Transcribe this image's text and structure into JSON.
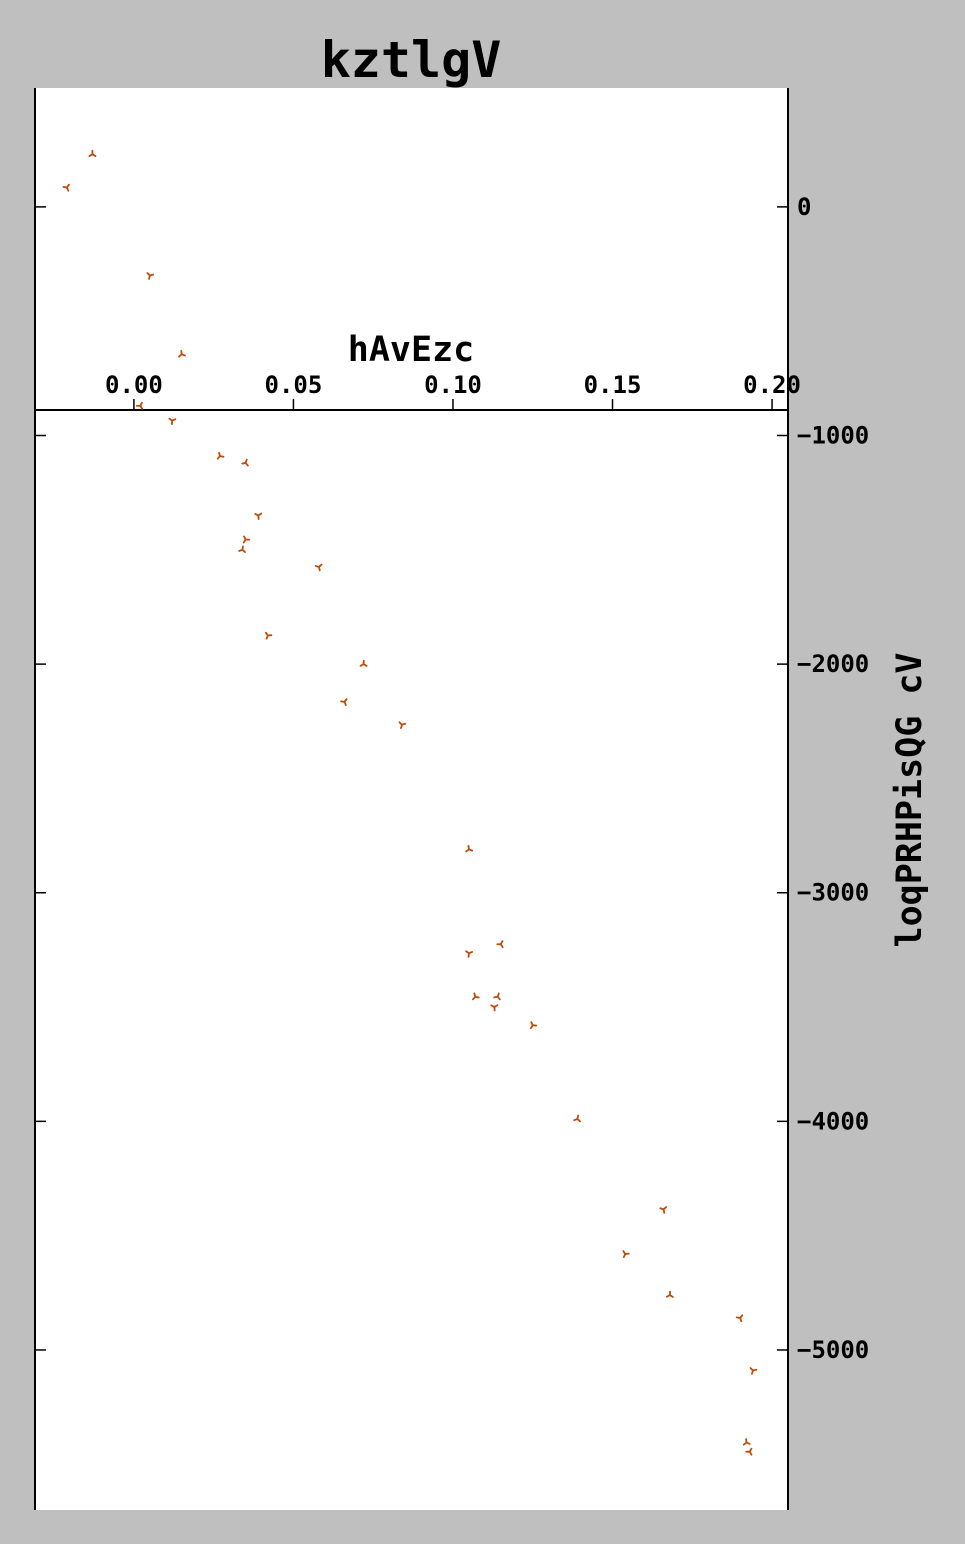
{
  "chart_data": {
    "type": "scatter",
    "title": "kztlgV",
    "xlabel": "hAvEzc",
    "ylabel": "loqPRHPisQG cV",
    "xlim": [
      -0.031,
      0.205
    ],
    "ylim": [
      -5700,
      520
    ],
    "x_ticks": [
      0.0,
      0.05,
      0.1,
      0.15,
      0.2
    ],
    "x_tick_labels": [
      "0.00",
      "0.05",
      "0.10",
      "0.15",
      "0.20"
    ],
    "y_ticks": [
      0,
      -1000,
      -2000,
      -3000,
      -4000,
      -5000
    ],
    "y_tick_labels": [
      "0",
      "−1000",
      "−2000",
      "−3000",
      "−4000",
      "−5000"
    ],
    "x_axis_position": "inside-top",
    "y_axis_position": "right",
    "grid": false,
    "marker": "tri",
    "marker_color": "#c04a08",
    "points": [
      {
        "x": -0.013,
        "y": 230
      },
      {
        "x": -0.021,
        "y": 85
      },
      {
        "x": 0.005,
        "y": -300
      },
      {
        "x": 0.015,
        "y": -645
      },
      {
        "x": 0.002,
        "y": -870
      },
      {
        "x": 0.012,
        "y": -935
      },
      {
        "x": 0.027,
        "y": -1090
      },
      {
        "x": 0.035,
        "y": -1120
      },
      {
        "x": 0.039,
        "y": -1350
      },
      {
        "x": 0.035,
        "y": -1455
      },
      {
        "x": 0.034,
        "y": -1500
      },
      {
        "x": 0.058,
        "y": -1575
      },
      {
        "x": 0.042,
        "y": -1875
      },
      {
        "x": 0.072,
        "y": -2000
      },
      {
        "x": 0.066,
        "y": -2165
      },
      {
        "x": 0.084,
        "y": -2265
      },
      {
        "x": 0.105,
        "y": -2810
      },
      {
        "x": 0.115,
        "y": -3225
      },
      {
        "x": 0.105,
        "y": -3265
      },
      {
        "x": 0.107,
        "y": -3455
      },
      {
        "x": 0.114,
        "y": -3455
      },
      {
        "x": 0.113,
        "y": -3500
      },
      {
        "x": 0.125,
        "y": -3580
      },
      {
        "x": 0.139,
        "y": -3990
      },
      {
        "x": 0.166,
        "y": -4385
      },
      {
        "x": 0.154,
        "y": -4580
      },
      {
        "x": 0.168,
        "y": -4760
      },
      {
        "x": 0.19,
        "y": -4860
      },
      {
        "x": 0.194,
        "y": -5090
      },
      {
        "x": 0.192,
        "y": -5405
      },
      {
        "x": 0.193,
        "y": -5445
      }
    ]
  }
}
